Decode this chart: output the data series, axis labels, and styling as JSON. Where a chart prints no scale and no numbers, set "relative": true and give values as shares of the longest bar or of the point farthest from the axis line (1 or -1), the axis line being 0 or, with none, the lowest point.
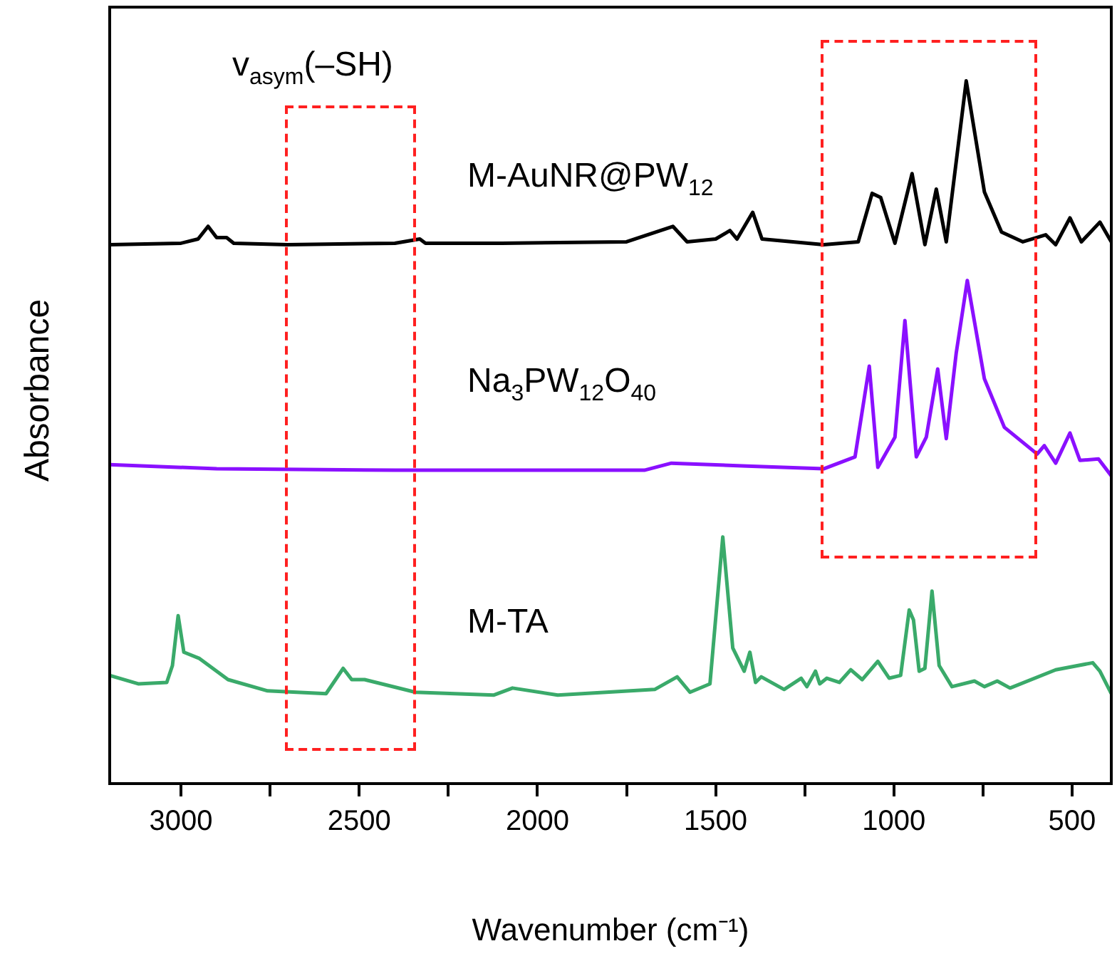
{
  "chart_data": {
    "type": "line",
    "relative": true,
    "xlabel": "Wavenumber (cm⁻¹)",
    "ylabel": "Absorbance",
    "xlim": [
      3200,
      390
    ],
    "xticks": [
      3000,
      {
        "value": 2750,
        "label": null
      },
      2500,
      {
        "value": 2250,
        "label": null
      },
      2000,
      {
        "value": 1750,
        "label": null
      },
      1500,
      {
        "value": 1250,
        "label": null
      },
      1000,
      {
        "value": 750,
        "label": null
      },
      500
    ],
    "grid": false,
    "legend": false,
    "marker": "none",
    "line_style": "solid",
    "annotations": [
      "v$_{asym}$(–SH)"
    ],
    "series": [
      {
        "name": "M-AuNR@PW$_{12}$",
        "color": "#000000",
        "x": [
          3200,
          3000,
          2952,
          2924,
          2900,
          2872,
          2852,
          2700,
          2400,
          2330,
          2314,
          2100,
          1750,
          1620,
          1580,
          1500,
          1460,
          1440,
          1396,
          1370,
          1197,
          1100,
          1061,
          1037,
          997,
          949,
          913,
          881,
          853,
          797,
          746,
          698,
          638,
          574,
          546,
          506,
          474,
          422,
          390
        ],
        "values": [
          0.767,
          0.769,
          0.775,
          0.793,
          0.777,
          0.777,
          0.769,
          0.767,
          0.769,
          0.775,
          0.769,
          0.769,
          0.771,
          0.793,
          0.771,
          0.775,
          0.787,
          0.775,
          0.813,
          0.775,
          0.767,
          0.771,
          0.84,
          0.834,
          0.769,
          0.868,
          0.767,
          0.846,
          0.771,
          1,
          0.842,
          0.785,
          0.771,
          0.781,
          0.767,
          0.805,
          0.771,
          0.799,
          0.771
        ]
      },
      {
        "name": "Na$_{3}$PW$_{12}$O$_{40}$",
        "color": "#8a10ff",
        "x": [
          3200,
          2900,
          2400,
          1700,
          1624,
          1412,
          1197,
          1109,
          1069,
          1045,
          997,
          969,
          937,
          909,
          877,
          853,
          825,
          794,
          746,
          690,
          598,
          578,
          546,
          506,
          478,
          426,
          390
        ],
        "values": [
          0.454,
          0.448,
          0.446,
          0.446,
          0.456,
          0.452,
          0.448,
          0.465,
          0.594,
          0.45,
          0.493,
          0.659,
          0.465,
          0.493,
          0.59,
          0.491,
          0.613,
          0.716,
          0.576,
          0.507,
          0.469,
          0.481,
          0.456,
          0.499,
          0.46,
          0.462,
          0.438
        ]
      },
      {
        "name": "M-TA",
        "color": "#3aaa6a",
        "x": [
          3200,
          3120,
          3040,
          3024,
          3008,
          2992,
          2948,
          2868,
          2757,
          2593,
          2545,
          2521,
          2485,
          2342,
          2122,
          2070,
          1943,
          1671,
          1608,
          1572,
          1516,
          1480,
          1452,
          1420,
          1404,
          1388,
          1372,
          1308,
          1260,
          1244,
          1220,
          1208,
          1188,
          1153,
          1121,
          1089,
          1045,
          1013,
          981,
          957,
          945,
          929,
          913,
          893,
          873,
          837,
          774,
          746,
          710,
          674,
          546,
          442,
          422,
          390
        ],
        "values": [
          0.154,
          0.142,
          0.144,
          0.168,
          0.239,
          0.187,
          0.178,
          0.148,
          0.132,
          0.128,
          0.164,
          0.148,
          0.148,
          0.13,
          0.126,
          0.136,
          0.126,
          0.134,
          0.152,
          0.13,
          0.142,
          0.351,
          0.193,
          0.16,
          0.187,
          0.144,
          0.152,
          0.134,
          0.15,
          0.138,
          0.16,
          0.142,
          0.15,
          0.144,
          0.162,
          0.148,
          0.174,
          0.15,
          0.154,
          0.247,
          0.233,
          0.16,
          0.164,
          0.274,
          0.168,
          0.138,
          0.146,
          0.138,
          0.146,
          0.136,
          0.162,
          0.172,
          0.16,
          0.128
        ]
      }
    ]
  }
}
